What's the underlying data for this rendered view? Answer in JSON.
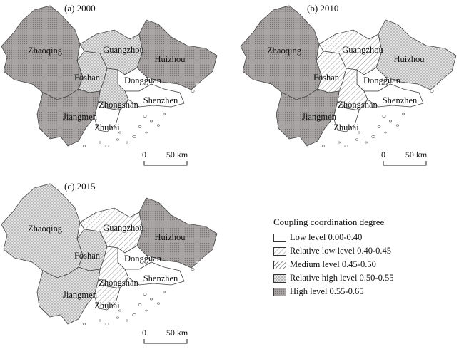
{
  "legend": {
    "title": "Coupling coordination degree",
    "items": [
      {
        "label": "Low level 0.00-0.40",
        "pattern": "low"
      },
      {
        "label": "Relative low level 0.40-0.45",
        "pattern": "rellow"
      },
      {
        "label": "Medium level 0.45-0.50",
        "pattern": "medium"
      },
      {
        "label": "Relative high level 0.50-0.55",
        "pattern": "relhigh"
      },
      {
        "label": "High level 0.55-0.65",
        "pattern": "high"
      }
    ]
  },
  "scale": {
    "zero": "0",
    "fifty": "50 km"
  },
  "panels": [
    {
      "label": "(a) 2000",
      "cities": {
        "Zhaoqing": "high",
        "Guangzhou": "relhigh",
        "Huizhou": "high",
        "Foshan": "relhigh",
        "Dongguan": "low",
        "Shenzhen": "low",
        "Zhongshan": "relhigh",
        "Jiangmen": "high",
        "Zhuhai": "low"
      }
    },
    {
      "label": "(b) 2010",
      "cities": {
        "Zhaoqing": "high",
        "Guangzhou": "rellow",
        "Huizhou": "relhigh",
        "Foshan": "rellow",
        "Dongguan": "low",
        "Shenzhen": "low",
        "Zhongshan": "rellow",
        "Jiangmen": "high",
        "Zhuhai": "low"
      }
    },
    {
      "label": "(c) 2015",
      "cities": {
        "Zhaoqing": "relhigh",
        "Guangzhou": "rellow",
        "Huizhou": "high",
        "Foshan": "relhigh",
        "Dongguan": "low",
        "Shenzhen": "low",
        "Zhongshan": "rellow",
        "Jiangmen": "relhigh",
        "Zhuhai": "rellow"
      }
    }
  ],
  "city_names": [
    "Zhaoqing",
    "Guangzhou",
    "Huizhou",
    "Foshan",
    "Dongguan",
    "Shenzhen",
    "Zhongshan",
    "Jiangmen",
    "Zhuhai"
  ]
}
